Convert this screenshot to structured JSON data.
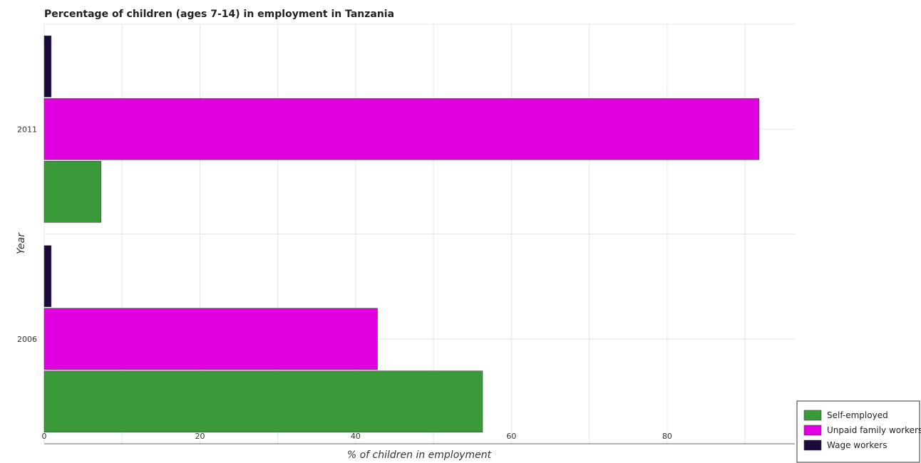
{
  "chart_data": {
    "type": "bar",
    "orientation": "horizontal",
    "title": "Percentage of children (ages 7-14) in employment in Tanzania",
    "xlabel": "% of children in employment",
    "ylabel": "Year",
    "categories": [
      "2006",
      "2011"
    ],
    "series": [
      {
        "name": "Self-employed",
        "color": "#3a9a3a",
        "values": [
          56.3,
          7.3
        ]
      },
      {
        "name": "Unpaid family workers",
        "color": "#e000e0",
        "values": [
          42.8,
          91.8
        ]
      },
      {
        "name": "Wage workers",
        "color": "#1a0a3c",
        "values": [
          0.9,
          0.9
        ]
      }
    ],
    "xlim": [
      0,
      96.4
    ],
    "xticks": [
      0,
      20,
      40,
      60,
      80
    ],
    "grid": true,
    "legend_position": "bottom-right"
  }
}
